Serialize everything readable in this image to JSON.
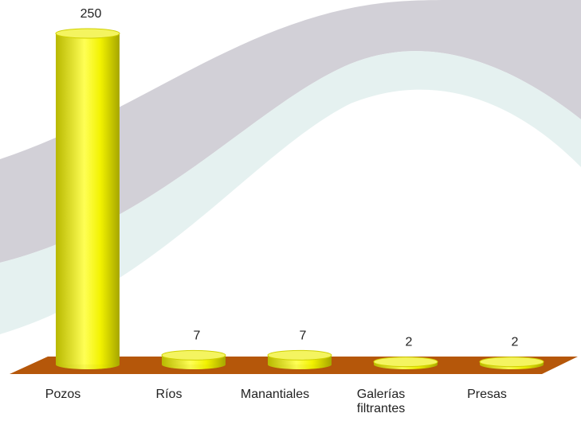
{
  "chart_data": {
    "type": "bar",
    "categories": [
      "Pozos",
      "Ríos",
      "Manantiales",
      "Galerías filtrantes",
      "Presas"
    ],
    "values": [
      250,
      7,
      7,
      2,
      2
    ],
    "color": "#ffff33",
    "floor_color": "#b5570a"
  }
}
